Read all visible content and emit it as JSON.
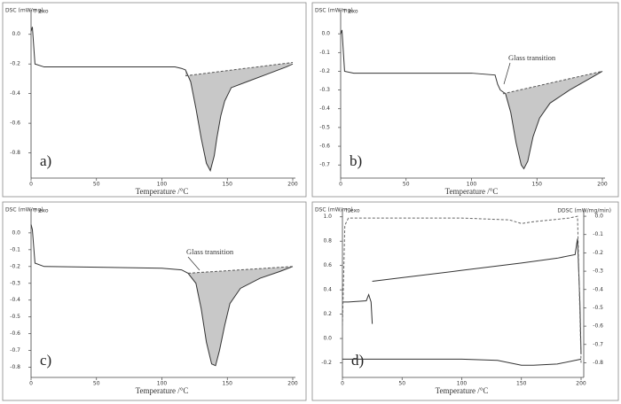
{
  "chart_data": [
    {
      "type": "line",
      "panel_label": "a)",
      "ylabel": "DSC (mW/mg)",
      "xlabel": "Temperature /°C",
      "exo": "↑ exo",
      "xlim": [
        0,
        200
      ],
      "xticks": [
        0,
        50,
        100,
        150,
        200
      ],
      "ylim": [
        -0.97,
        0.13
      ],
      "yticks": [
        {
          "value": 0,
          "label": "0.0"
        },
        -0.2,
        -0.4,
        -0.6,
        -0.8
      ],
      "series": [
        {
          "color": "#333333",
          "x": [
            0,
            1,
            3,
            10,
            50,
            100,
            110,
            115,
            118,
            122,
            126,
            130,
            134,
            137,
            140,
            142,
            145,
            148,
            153,
            165,
            180,
            195,
            200
          ],
          "values": [
            0.02,
            0.05,
            -0.2,
            -0.22,
            -0.22,
            -0.22,
            -0.22,
            -0.23,
            -0.24,
            -0.32,
            -0.5,
            -0.7,
            -0.87,
            -0.92,
            -0.82,
            -0.7,
            -0.55,
            -0.45,
            -0.36,
            -0.32,
            -0.27,
            -0.22,
            -0.2
          ]
        },
        {
          "color": "#555555",
          "dash": true,
          "x": [
            118,
            200
          ],
          "values": [
            -0.28,
            -0.19
          ]
        }
      ],
      "shade": {
        "color": "#c8c8c8",
        "x": [
          118,
          122,
          126,
          130,
          134,
          137,
          140,
          142,
          145,
          148,
          153,
          165,
          180,
          195,
          200,
          118
        ],
        "values": [
          -0.24,
          -0.32,
          -0.5,
          -0.7,
          -0.87,
          -0.92,
          -0.82,
          -0.7,
          -0.55,
          -0.45,
          -0.36,
          -0.32,
          -0.27,
          -0.22,
          -0.19,
          -0.28
        ]
      }
    },
    {
      "type": "line",
      "panel_label": "b)",
      "ylabel": "DSC (mW/mg)",
      "xlabel": "Temperature /°C",
      "exo": "↑ exo",
      "annotation": "Glass transition",
      "xlim": [
        0,
        200
      ],
      "xticks": [
        0,
        50,
        100,
        150,
        200
      ],
      "ylim": [
        -0.77,
        0.1
      ],
      "yticks": [
        {
          "value": 0,
          "label": "0.0"
        },
        -0.1,
        -0.2,
        -0.3,
        -0.4,
        -0.5,
        -0.6,
        -0.7
      ],
      "series": [
        {
          "color": "#333333",
          "x": [
            0,
            1,
            3,
            10,
            50,
            100,
            118,
            120,
            122,
            126,
            130,
            134,
            138,
            140,
            143,
            147,
            152,
            160,
            175,
            190,
            200
          ],
          "values": [
            0.0,
            0.02,
            -0.2,
            -0.21,
            -0.21,
            -0.21,
            -0.22,
            -0.27,
            -0.3,
            -0.32,
            -0.42,
            -0.58,
            -0.7,
            -0.72,
            -0.68,
            -0.55,
            -0.45,
            -0.37,
            -0.3,
            -0.24,
            -0.2
          ]
        },
        {
          "color": "#555555",
          "dash": true,
          "x": [
            124,
            200
          ],
          "values": [
            -0.32,
            -0.2
          ]
        }
      ],
      "shade": {
        "color": "#c8c8c8",
        "x": [
          124,
          126,
          130,
          134,
          138,
          140,
          143,
          147,
          152,
          160,
          175,
          190,
          200,
          124
        ],
        "values": [
          -0.32,
          -0.32,
          -0.42,
          -0.58,
          -0.7,
          -0.72,
          -0.68,
          -0.55,
          -0.45,
          -0.37,
          -0.3,
          -0.24,
          -0.2,
          -0.32
        ]
      }
    },
    {
      "type": "line",
      "panel_label": "c)",
      "ylabel": "DSC (mW/mg)",
      "xlabel": "Temperature /°C",
      "exo": "↑ exo",
      "annotation": "Glass transition",
      "xlim": [
        0,
        200
      ],
      "xticks": [
        0,
        50,
        100,
        150,
        200
      ],
      "ylim": [
        -0.86,
        0.11
      ],
      "yticks": [
        {
          "value": 0,
          "label": "0.0"
        },
        -0.1,
        -0.2,
        -0.3,
        -0.4,
        -0.5,
        -0.6,
        -0.7,
        -0.8
      ],
      "series": [
        {
          "color": "#333333",
          "x": [
            0,
            1,
            3,
            10,
            100,
            115,
            120,
            126,
            130,
            134,
            138,
            141,
            144,
            148,
            152,
            160,
            175,
            190,
            200
          ],
          "values": [
            0.05,
            0.02,
            -0.18,
            -0.2,
            -0.21,
            -0.22,
            -0.24,
            -0.3,
            -0.45,
            -0.65,
            -0.78,
            -0.79,
            -0.7,
            -0.55,
            -0.42,
            -0.33,
            -0.27,
            -0.23,
            -0.2
          ]
        },
        {
          "color": "#555555",
          "dash": true,
          "x": [
            120,
            200
          ],
          "values": [
            -0.24,
            -0.2
          ]
        }
      ],
      "shade": {
        "color": "#c8c8c8",
        "x": [
          120,
          126,
          130,
          134,
          138,
          141,
          144,
          148,
          152,
          160,
          175,
          190,
          200,
          120
        ],
        "values": [
          -0.24,
          -0.3,
          -0.45,
          -0.65,
          -0.78,
          -0.79,
          -0.7,
          -0.55,
          -0.42,
          -0.33,
          -0.27,
          -0.23,
          -0.2,
          -0.24
        ]
      }
    },
    {
      "type": "line",
      "panel_label": "d)",
      "ylabel": "DSC (mW/mg)",
      "y2label": "DDSC (mW/mg/min)",
      "xlabel": "Temperature /°C",
      "exo": "↑ exo",
      "xlim": [
        0,
        200
      ],
      "xticks": [
        0,
        50,
        100,
        150,
        200
      ],
      "ylim": [
        -0.32,
        1.02
      ],
      "yticks": [
        {
          "value": 1,
          "label": "1.0"
        },
        0.8,
        0.6,
        0.4,
        0.2,
        {
          "value": 0,
          "label": "0.0"
        },
        -0.2
      ],
      "y2lim": [
        -0.88,
        0.01
      ],
      "y2ticks": [
        {
          "value": 0,
          "label": "0.0"
        },
        -0.1,
        -0.2,
        -0.3,
        -0.4,
        -0.5,
        -0.6,
        -0.7,
        -0.8
      ],
      "series": [
        {
          "color": "#333333",
          "x": [
            0,
            5,
            20,
            22,
            24,
            25
          ],
          "values": [
            0.3,
            0.3,
            0.31,
            0.36,
            0.3,
            0.12
          ]
        },
        {
          "color": "#333333",
          "x": [
            25,
            50,
            100,
            150,
            180,
            195,
            197,
            199,
            200
          ],
          "values": [
            0.47,
            0.5,
            0.56,
            0.62,
            0.66,
            0.69,
            0.82,
            0.3,
            -0.13
          ]
        },
        {
          "color": "#333333",
          "x": [
            0,
            50,
            100,
            130,
            150,
            160,
            180,
            200
          ],
          "values": [
            -0.17,
            -0.17,
            -0.17,
            -0.18,
            -0.22,
            -0.22,
            -0.21,
            -0.17
          ]
        },
        {
          "color": "#666666",
          "dash": true,
          "axis": "y2",
          "x": [
            0,
            2,
            5,
            50,
            100,
            140,
            150,
            160,
            190,
            197,
            200
          ],
          "values": [
            -0.6,
            -0.05,
            -0.01,
            -0.01,
            -0.01,
            -0.02,
            -0.04,
            -0.03,
            -0.01,
            0.0,
            -0.8
          ]
        }
      ]
    }
  ]
}
